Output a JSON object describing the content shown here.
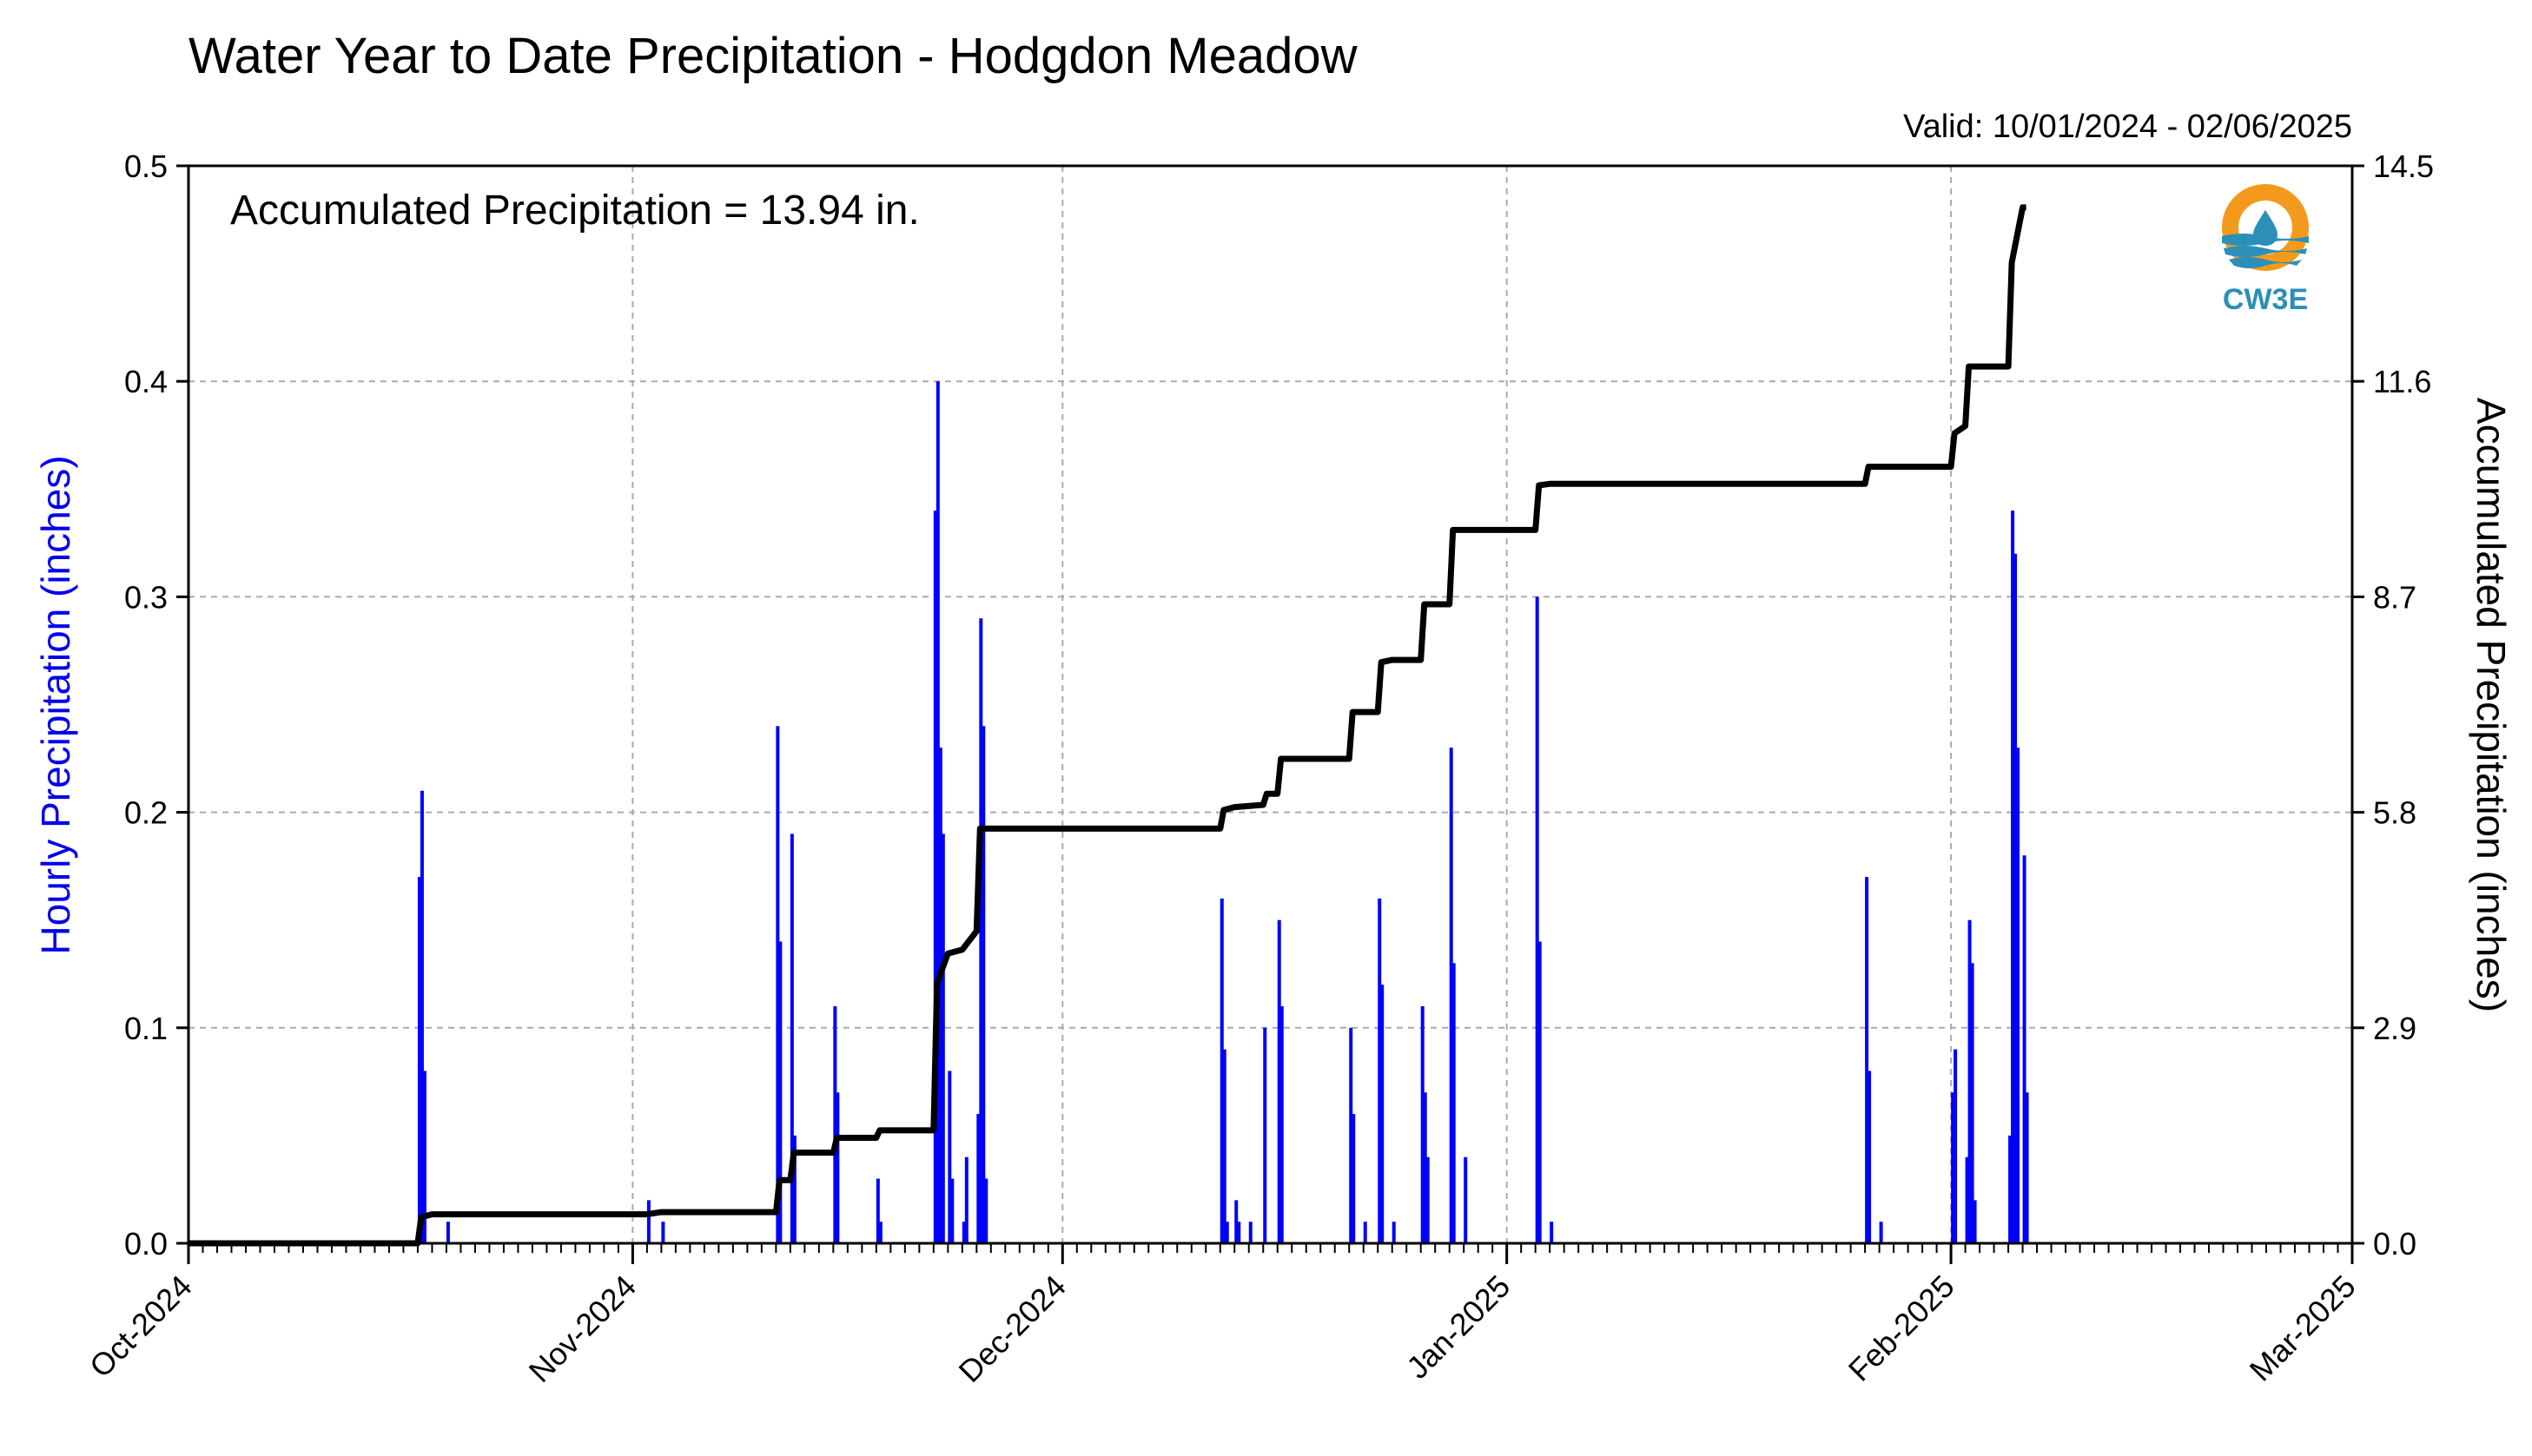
{
  "chart_data": {
    "type": "bar+line",
    "title": "Water Year to Date Precipitation - Hodgdon Meadow",
    "subtitle": "Valid: 10/01/2024 - 02/06/2025",
    "annotation": "Accumulated Precipitation = 13.94 in.",
    "logo_text": "CW3E",
    "ylabel_left": "Hourly Precipitation (inches)",
    "ylabel_right": "Accumulated Precipitation (inches)",
    "x_range": [
      "2024-10-01",
      "2025-03-01"
    ],
    "x_ticks": [
      {
        "date": "2024-10-01",
        "label": "Oct-2024"
      },
      {
        "date": "2024-11-01",
        "label": "Nov-2024"
      },
      {
        "date": "2024-12-01",
        "label": "Dec-2024"
      },
      {
        "date": "2025-01-01",
        "label": "Jan-2025"
      },
      {
        "date": "2025-02-01",
        "label": "Feb-2025"
      },
      {
        "date": "2025-03-01",
        "label": "Mar-2025"
      }
    ],
    "ylim_left": [
      0,
      0.5
    ],
    "yticks_left": [
      "0.0",
      "0.1",
      "0.2",
      "0.3",
      "0.4",
      "0.5"
    ],
    "ylim_right": [
      0,
      14.5
    ],
    "yticks_right": [
      "0.0",
      "2.9",
      "5.8",
      "8.7",
      "11.6",
      "14.5"
    ],
    "grid": true,
    "colors": {
      "hourly": "#0000ff",
      "accumulated": "#000000",
      "grid": "#aaaaaa"
    },
    "hourly_series": {
      "name": "Hourly Precipitation",
      "points": [
        [
          "2024-10-17",
          0.17
        ],
        [
          "2024-10-17",
          0.21
        ],
        [
          "2024-10-17",
          0.08
        ],
        [
          "2024-10-19",
          0.01
        ],
        [
          "2024-11-02",
          0.02
        ],
        [
          "2024-11-03",
          0.01
        ],
        [
          "2024-11-11",
          0.24
        ],
        [
          "2024-11-11",
          0.14
        ],
        [
          "2024-11-12",
          0.19
        ],
        [
          "2024-11-12",
          0.05
        ],
        [
          "2024-11-15",
          0.11
        ],
        [
          "2024-11-15",
          0.07
        ],
        [
          "2024-11-18",
          0.03
        ],
        [
          "2024-11-18",
          0.01
        ],
        [
          "2024-11-22",
          0.34
        ],
        [
          "2024-11-22",
          0.4
        ],
        [
          "2024-11-22",
          0.23
        ],
        [
          "2024-11-22",
          0.19
        ],
        [
          "2024-11-23",
          0.08
        ],
        [
          "2024-11-23",
          0.03
        ],
        [
          "2024-11-24",
          0.01
        ],
        [
          "2024-11-24",
          0.04
        ],
        [
          "2024-11-25",
          0.06
        ],
        [
          "2024-11-25",
          0.29
        ],
        [
          "2024-11-25",
          0.24
        ],
        [
          "2024-11-25",
          0.03
        ],
        [
          "2024-12-12",
          0.16
        ],
        [
          "2024-12-12",
          0.09
        ],
        [
          "2024-12-12",
          0.01
        ],
        [
          "2024-12-13",
          0.02
        ],
        [
          "2024-12-13",
          0.01
        ],
        [
          "2024-12-14",
          0.01
        ],
        [
          "2024-12-15",
          0.1
        ],
        [
          "2024-12-16",
          0.15
        ],
        [
          "2024-12-16",
          0.11
        ],
        [
          "2024-12-21",
          0.1
        ],
        [
          "2024-12-21",
          0.06
        ],
        [
          "2024-12-22",
          0.01
        ],
        [
          "2024-12-23",
          0.16
        ],
        [
          "2024-12-23",
          0.12
        ],
        [
          "2024-12-24",
          0.01
        ],
        [
          "2024-12-26",
          0.11
        ],
        [
          "2024-12-26",
          0.07
        ],
        [
          "2024-12-26",
          0.04
        ],
        [
          "2024-12-28",
          0.23
        ],
        [
          "2024-12-28",
          0.13
        ],
        [
          "2024-12-29",
          0.04
        ],
        [
          "2025-01-03",
          0.3
        ],
        [
          "2025-01-03",
          0.14
        ],
        [
          "2025-01-04",
          0.01
        ],
        [
          "2025-01-26",
          0.17
        ],
        [
          "2025-01-26",
          0.08
        ],
        [
          "2025-01-27",
          0.01
        ],
        [
          "2025-02-01",
          0.07
        ],
        [
          "2025-02-01",
          0.09
        ],
        [
          "2025-02-02",
          0.04
        ],
        [
          "2025-02-02",
          0.15
        ],
        [
          "2025-02-02",
          0.13
        ],
        [
          "2025-02-02",
          0.02
        ],
        [
          "2025-02-05",
          0.05
        ],
        [
          "2025-02-05",
          0.34
        ],
        [
          "2025-02-05",
          0.32
        ],
        [
          "2025-02-05",
          0.23
        ],
        [
          "2025-02-06",
          0.18
        ],
        [
          "2025-02-06",
          0.07
        ]
      ]
    },
    "accumulated_series": {
      "name": "Accumulated Precipitation",
      "points": [
        [
          "2024-10-01",
          0.0
        ],
        [
          "2024-10-17",
          0.0
        ],
        [
          "2024-10-17",
          0.35
        ],
        [
          "2024-10-18",
          0.39
        ],
        [
          "2024-11-02",
          0.39
        ],
        [
          "2024-11-03",
          0.42
        ],
        [
          "2024-11-11",
          0.42
        ],
        [
          "2024-11-11",
          0.85
        ],
        [
          "2024-11-12",
          0.85
        ],
        [
          "2024-11-12",
          1.22
        ],
        [
          "2024-11-15",
          1.22
        ],
        [
          "2024-11-15",
          1.42
        ],
        [
          "2024-11-18",
          1.42
        ],
        [
          "2024-11-18",
          1.52
        ],
        [
          "2024-11-22",
          1.52
        ],
        [
          "2024-11-22",
          3.5
        ],
        [
          "2024-11-23",
          3.9
        ],
        [
          "2024-11-24",
          3.95
        ],
        [
          "2024-11-25",
          4.2
        ],
        [
          "2024-11-25",
          5.58
        ],
        [
          "2024-12-12",
          5.58
        ],
        [
          "2024-12-12",
          5.83
        ],
        [
          "2024-12-13",
          5.87
        ],
        [
          "2024-12-15",
          5.9
        ],
        [
          "2024-12-15",
          6.05
        ],
        [
          "2024-12-16",
          6.05
        ],
        [
          "2024-12-16",
          6.52
        ],
        [
          "2024-12-21",
          6.52
        ],
        [
          "2024-12-21",
          7.15
        ],
        [
          "2024-12-23",
          7.15
        ],
        [
          "2024-12-23",
          7.82
        ],
        [
          "2024-12-24",
          7.85
        ],
        [
          "2024-12-26",
          7.85
        ],
        [
          "2024-12-26",
          8.6
        ],
        [
          "2024-12-28",
          8.6
        ],
        [
          "2024-12-28",
          9.6
        ],
        [
          "2025-01-03",
          9.6
        ],
        [
          "2025-01-03",
          10.2
        ],
        [
          "2025-01-04",
          10.22
        ],
        [
          "2025-01-26",
          10.22
        ],
        [
          "2025-01-26",
          10.45
        ],
        [
          "2025-02-01",
          10.45
        ],
        [
          "2025-02-01",
          10.9
        ],
        [
          "2025-02-02",
          11.0
        ],
        [
          "2025-02-02",
          11.8
        ],
        [
          "2025-02-05",
          11.8
        ],
        [
          "2025-02-05",
          13.2
        ],
        [
          "2025-02-06",
          13.94
        ],
        [
          "2025-02-06",
          13.94
        ]
      ]
    }
  }
}
